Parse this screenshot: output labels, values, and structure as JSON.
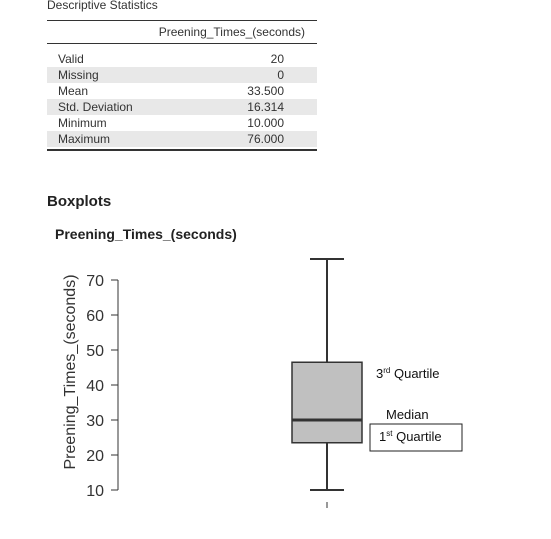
{
  "descriptive_statistics": {
    "title": "Descriptive Statistics",
    "column_header": "Preening_Times_(seconds)",
    "rows": [
      {
        "label": "Valid",
        "value": "20"
      },
      {
        "label": "Missing",
        "value": "0"
      },
      {
        "label": "Mean",
        "value": "33.500"
      },
      {
        "label": "Std. Deviation",
        "value": "16.314"
      },
      {
        "label": "Minimum",
        "value": "10.000"
      },
      {
        "label": "Maximum",
        "value": "76.000"
      }
    ]
  },
  "boxplots": {
    "section_title": "Boxplots",
    "plot_title": "Preening_Times_(seconds)",
    "annotations": {
      "third_quartile": {
        "ord": "rd",
        "text": "3",
        "suffix": " Quartile"
      },
      "median": "Median",
      "first_quartile": {
        "ord": "st",
        "text": "1",
        "suffix": " Quartile"
      }
    }
  },
  "chart_data": {
    "type": "box",
    "title": "Preening_Times_(seconds)",
    "ylabel": "Preening_Times_(seconds)",
    "ylim": [
      10,
      76
    ],
    "yticks": [
      10,
      20,
      30,
      40,
      50,
      60,
      70
    ],
    "box": {
      "min": 10,
      "q1": 23.5,
      "median": 30,
      "q3": 46.5,
      "max": 76
    },
    "colors": {
      "box_fill": "#c0c0c0",
      "stroke": "#333333"
    }
  }
}
